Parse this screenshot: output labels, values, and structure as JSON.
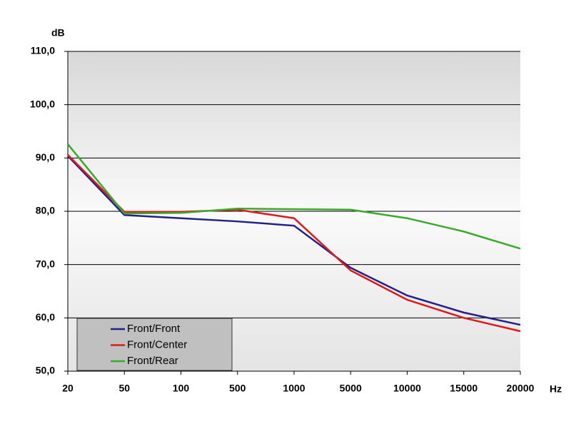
{
  "chart_data": {
    "type": "line",
    "y_label": "dB",
    "x_label": "Hz",
    "categories": [
      "20",
      "50",
      "100",
      "500",
      "1000",
      "5000",
      "10000",
      "15000",
      "20000"
    ],
    "series": [
      {
        "name": "Front/Front",
        "color": "#22208a",
        "values": [
          90.4,
          79.3,
          78.7,
          78.1,
          77.3,
          69.4,
          64.2,
          61.0,
          58.7
        ]
      },
      {
        "name": "Front/Center",
        "color": "#e01a1a",
        "values": [
          90.6,
          79.9,
          79.9,
          80.3,
          78.7,
          68.9,
          63.4,
          60.0,
          57.5
        ]
      },
      {
        "name": "Front/Rear",
        "color": "#3aaa2a",
        "values": [
          92.6,
          79.6,
          79.7,
          80.5,
          80.4,
          80.3,
          78.7,
          76.2,
          73.0
        ]
      }
    ],
    "ylim": [
      50,
      110
    ],
    "yticks": [
      {
        "value": 50,
        "label": "50,0"
      },
      {
        "value": 60,
        "label": "60,0"
      },
      {
        "value": 70,
        "label": "70,0"
      },
      {
        "value": 80,
        "label": "80,0"
      },
      {
        "value": 90,
        "label": "90,0"
      },
      {
        "value": 100,
        "label": "100,0"
      },
      {
        "value": 110,
        "label": "110,0"
      }
    ],
    "grid": true,
    "legend": "lower left"
  }
}
